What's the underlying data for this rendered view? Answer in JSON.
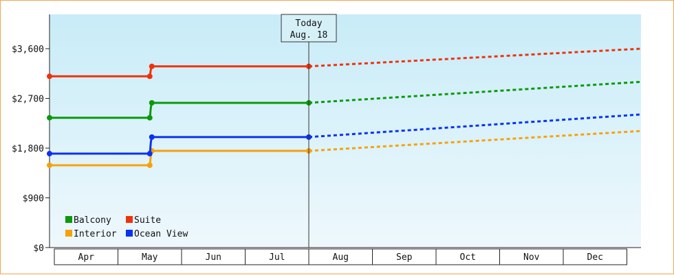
{
  "chart_data": {
    "type": "line",
    "categories": [
      "Apr",
      "May",
      "Jun",
      "Jul",
      "Aug",
      "Sep",
      "Oct",
      "Nov",
      "Dec"
    ],
    "y_ticks": [
      "$0",
      "$900",
      "$1,800",
      "$2,700",
      "$3,600"
    ],
    "ylim": [
      0,
      4300
    ],
    "today": {
      "line1": "Today",
      "line2": "Aug. 18",
      "x": 4.0
    },
    "legend_position": "bottom-left",
    "grid": false,
    "series": [
      {
        "name": "Balcony",
        "color": "#0a9a0a",
        "actual": [
          [
            0,
            2350
          ],
          [
            1.5,
            2350
          ],
          [
            1.5,
            2620
          ],
          [
            4.0,
            2620
          ]
        ],
        "forecast": [
          [
            4.0,
            2620
          ],
          [
            9.0,
            3000
          ]
        ]
      },
      {
        "name": "Suite",
        "color": "#f0320a",
        "actual": [
          [
            0,
            3100
          ],
          [
            1.5,
            3100
          ],
          [
            1.5,
            3280
          ],
          [
            4.0,
            3280
          ]
        ],
        "forecast": [
          [
            4.0,
            3280
          ],
          [
            9.0,
            3600
          ]
        ]
      },
      {
        "name": "Interior",
        "color": "#f5a20a",
        "actual": [
          [
            0,
            1490
          ],
          [
            1.5,
            1490
          ],
          [
            1.5,
            1750
          ],
          [
            4.0,
            1750
          ]
        ],
        "forecast": [
          [
            4.0,
            1750
          ],
          [
            9.0,
            2110
          ]
        ]
      },
      {
        "name": "Ocean View",
        "color": "#0a32f0",
        "actual": [
          [
            0,
            1700
          ],
          [
            1.5,
            1700
          ],
          [
            1.5,
            2000
          ],
          [
            4.0,
            2000
          ]
        ],
        "forecast": [
          [
            4.0,
            2000
          ],
          [
            9.0,
            2410
          ]
        ]
      }
    ]
  }
}
